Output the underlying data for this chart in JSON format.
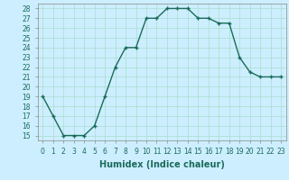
{
  "x": [
    0,
    1,
    2,
    3,
    4,
    5,
    6,
    7,
    8,
    9,
    10,
    11,
    12,
    13,
    14,
    15,
    16,
    17,
    18,
    19,
    20,
    21,
    22,
    23
  ],
  "y": [
    19,
    17,
    15,
    15,
    15,
    16,
    19,
    22,
    24,
    24,
    27,
    27,
    28,
    28,
    28,
    27,
    27,
    26.5,
    26.5,
    23,
    21.5,
    21,
    21,
    21
  ],
  "line_color": "#1a6b5a",
  "marker": "+",
  "marker_color": "#1a6b5a",
  "bg_color": "#cceeff",
  "grid_color": "#aaddcc",
  "xlabel": "Humidex (Indice chaleur)",
  "xlim": [
    -0.5,
    23.5
  ],
  "ylim": [
    14.5,
    28.5
  ],
  "yticks": [
    15,
    16,
    17,
    18,
    19,
    20,
    21,
    22,
    23,
    24,
    25,
    26,
    27,
    28
  ],
  "xticks": [
    0,
    1,
    2,
    3,
    4,
    5,
    6,
    7,
    8,
    9,
    10,
    11,
    12,
    13,
    14,
    15,
    16,
    17,
    18,
    19,
    20,
    21,
    22,
    23
  ],
  "tick_fontsize": 5.5,
  "label_fontsize": 7,
  "linewidth": 1.0,
  "markersize": 3.5
}
